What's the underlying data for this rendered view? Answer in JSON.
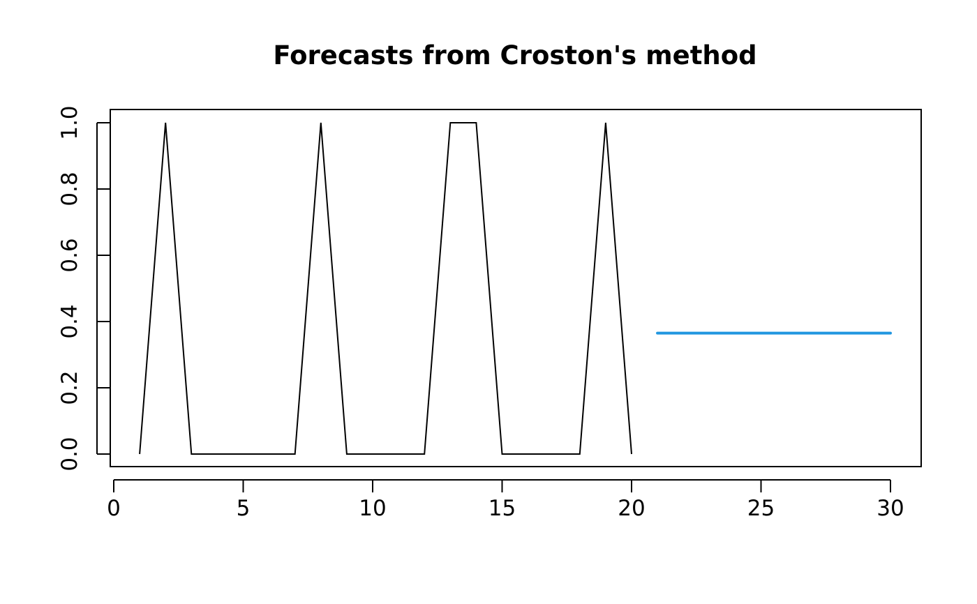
{
  "chart_data": {
    "type": "line",
    "title": "Forecasts from Croston's method",
    "xlabel": "",
    "ylabel": "",
    "xlim": [
      0,
      30
    ],
    "ylim": [
      0,
      1
    ],
    "x_ticks": [
      0,
      5,
      10,
      15,
      20,
      25,
      30
    ],
    "y_ticks": [
      0.0,
      0.2,
      0.4,
      0.6,
      0.8,
      1.0
    ],
    "x_tick_labels": [
      "0",
      "5",
      "10",
      "15",
      "20",
      "25",
      "30"
    ],
    "y_tick_labels": [
      "0.0",
      "0.2",
      "0.4",
      "0.6",
      "0.8",
      "1.0"
    ],
    "grid": false,
    "series": [
      {
        "role": "observed",
        "color": "#000000",
        "x": [
          1,
          2,
          3,
          4,
          5,
          6,
          7,
          8,
          9,
          10,
          11,
          12,
          13,
          14,
          15,
          16,
          17,
          18,
          19,
          20
        ],
        "values": [
          0,
          1,
          0,
          0,
          0,
          0,
          0,
          1,
          0,
          0,
          0,
          0,
          1,
          1,
          0,
          0,
          0,
          0,
          1,
          0
        ]
      },
      {
        "role": "forecast",
        "color": "#2196E0",
        "x": [
          21,
          22,
          23,
          24,
          25,
          26,
          27,
          28,
          29,
          30
        ],
        "values": [
          0.365,
          0.365,
          0.365,
          0.365,
          0.365,
          0.365,
          0.365,
          0.365,
          0.365,
          0.365
        ]
      }
    ]
  }
}
